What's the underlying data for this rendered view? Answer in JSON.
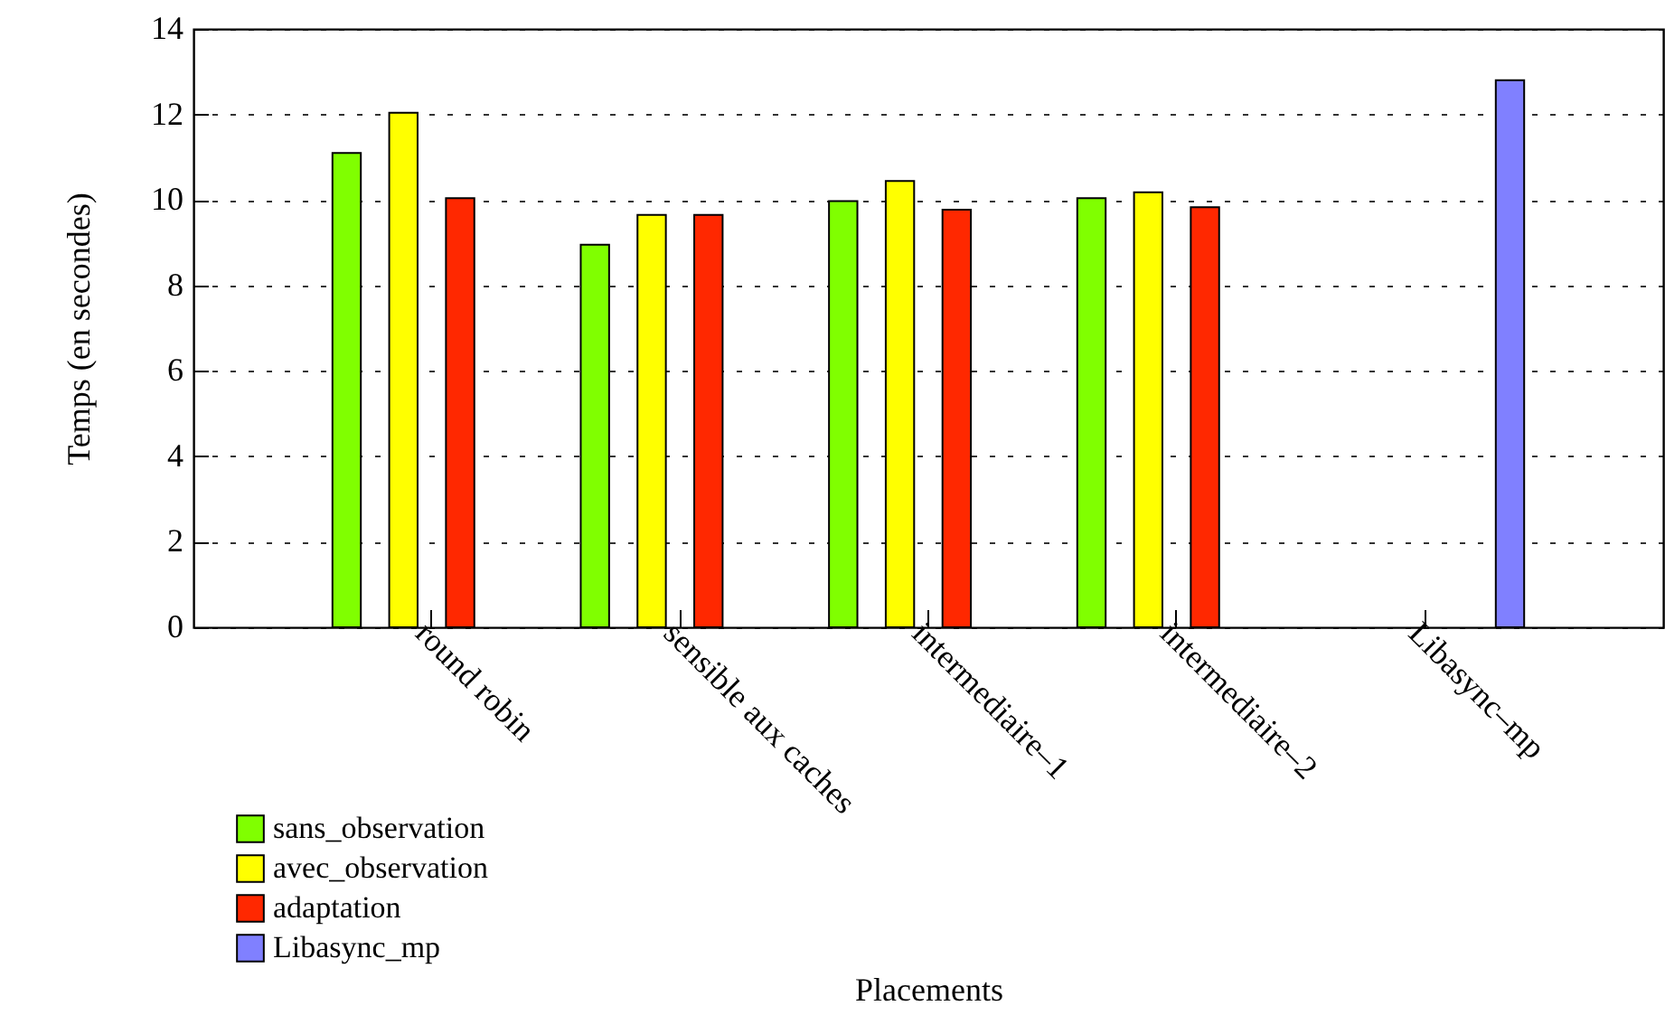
{
  "chart_data": {
    "type": "bar",
    "xlabel": "Placements",
    "ylabel": "Temps (en secondes)",
    "categories": [
      "round robin",
      "sensible aux caches",
      "intermediaire–1",
      "intermediaire–2",
      "Libasync–mp"
    ],
    "series": [
      {
        "name": "sans_observation",
        "color": "#80ff00",
        "values": [
          11.1,
          8.95,
          9.97,
          10.04,
          null
        ]
      },
      {
        "name": "avec_observation",
        "color": "#ffff00",
        "values": [
          12.04,
          9.65,
          10.44,
          10.18,
          null
        ]
      },
      {
        "name": "adaptation",
        "color": "#ff2800",
        "values": [
          10.04,
          9.65,
          9.77,
          9.83,
          null
        ]
      },
      {
        "name": "Libasync_mp",
        "color": "#8080ff",
        "values": [
          null,
          null,
          null,
          null,
          12.8
        ]
      }
    ],
    "ylim": [
      0,
      14
    ],
    "yticks": [
      0,
      2,
      4,
      6,
      8,
      10,
      12,
      14
    ],
    "grid": "y",
    "legend": "bottom left"
  }
}
